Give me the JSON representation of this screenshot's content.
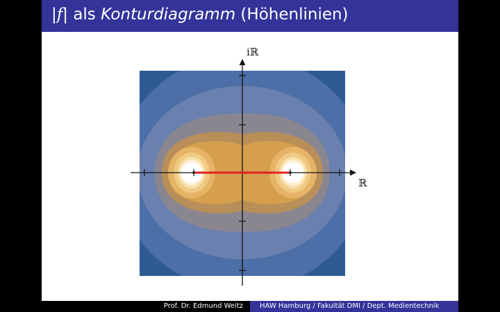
{
  "title": {
    "prefix": "|",
    "function": "f",
    "middle": "| als ",
    "emphasis": "Konturdiagramm",
    "suffix": " (Höhenlinien)"
  },
  "axes": {
    "real_label": "ℝ",
    "imag_label": "iℝ"
  },
  "footer": {
    "author": "Prof. Dr. Edmund Weitz",
    "affiliation": "HAW Hamburg / Fakultät DMI / Dept. Medientechnik"
  },
  "colors": {
    "title_bar": "#33339a",
    "segment": "#e02020",
    "background_outer": "#2e5a92",
    "blue_ring_1": "#4b6fa6",
    "blue_ring_2": "#6a80ae",
    "grey_ring": "#8a8690",
    "orange_1": "#b88f58",
    "orange_2": "#d59f4e",
    "orange_3": "#e6b468",
    "orange_4": "#f0c983",
    "orange_5": "#f8dfaa",
    "orange_6": "#fdf0d0",
    "core": "#ffffff"
  }
}
